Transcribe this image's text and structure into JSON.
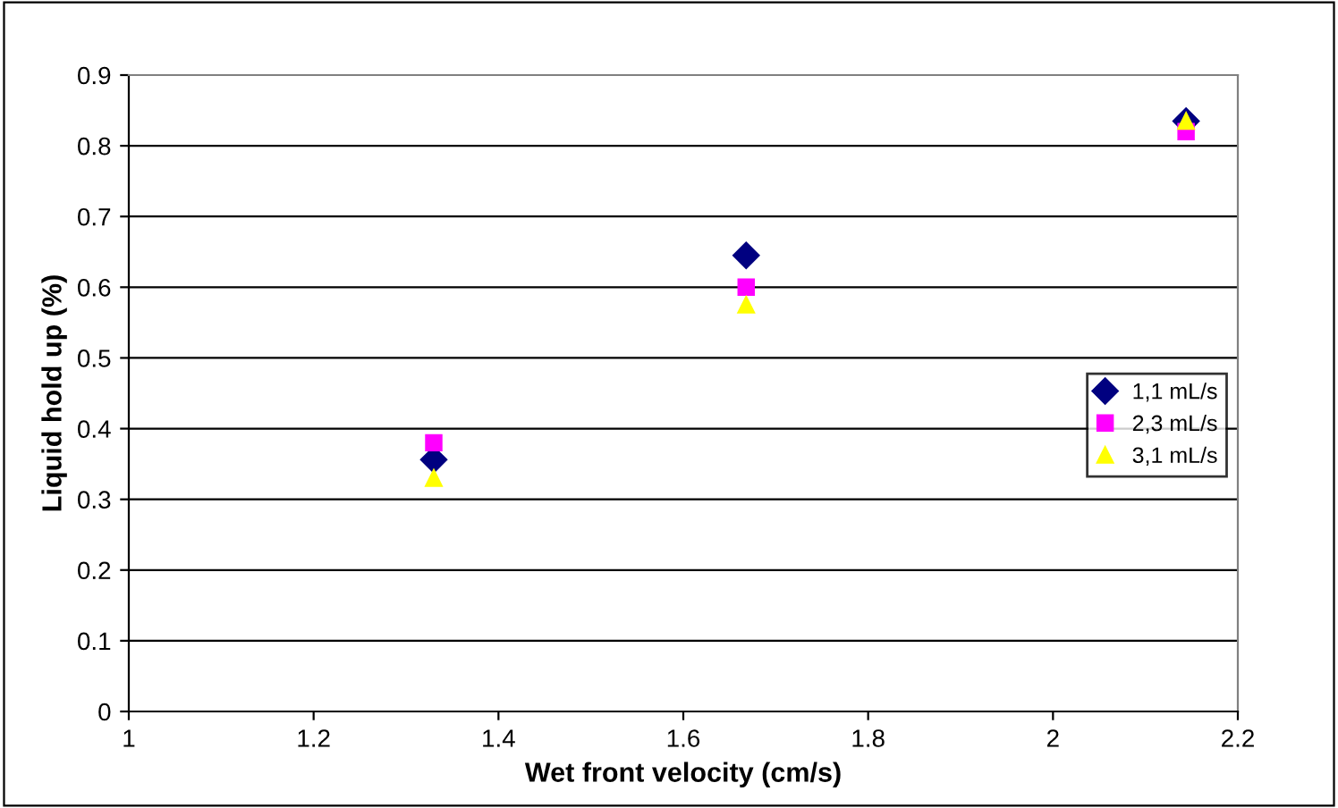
{
  "chart_data": {
    "type": "scatter",
    "xlabel": "Wet front velocity (cm/s)",
    "ylabel": "Liquid hold up (%)",
    "xlim": [
      1,
      2.2
    ],
    "xticks": [
      1,
      1.2,
      1.4,
      1.6,
      1.8,
      2,
      2.2
    ],
    "ylim": [
      0,
      0.9
    ],
    "yticks": [
      0,
      0.1,
      0.2,
      0.3,
      0.4,
      0.5,
      0.6,
      0.7,
      0.8,
      0.9
    ],
    "grid": "y",
    "legend": "right",
    "series": [
      {
        "name": "1,1 mL/s",
        "color": "#000080",
        "marker": "diamond",
        "x": [
          1.33,
          1.668,
          2.144
        ],
        "values": [
          0.356,
          0.645,
          0.835
        ]
      },
      {
        "name": "2,3 mL/s",
        "color": "#ff00ff",
        "marker": "square",
        "x": [
          1.33,
          1.668,
          2.144
        ],
        "values": [
          0.38,
          0.6,
          0.82
        ]
      },
      {
        "name": "3,1 mL/s",
        "color": "#ffff00",
        "marker": "triangle",
        "x": [
          1.33,
          1.668,
          2.144
        ],
        "values": [
          0.33,
          0.575,
          0.835
        ]
      }
    ]
  }
}
